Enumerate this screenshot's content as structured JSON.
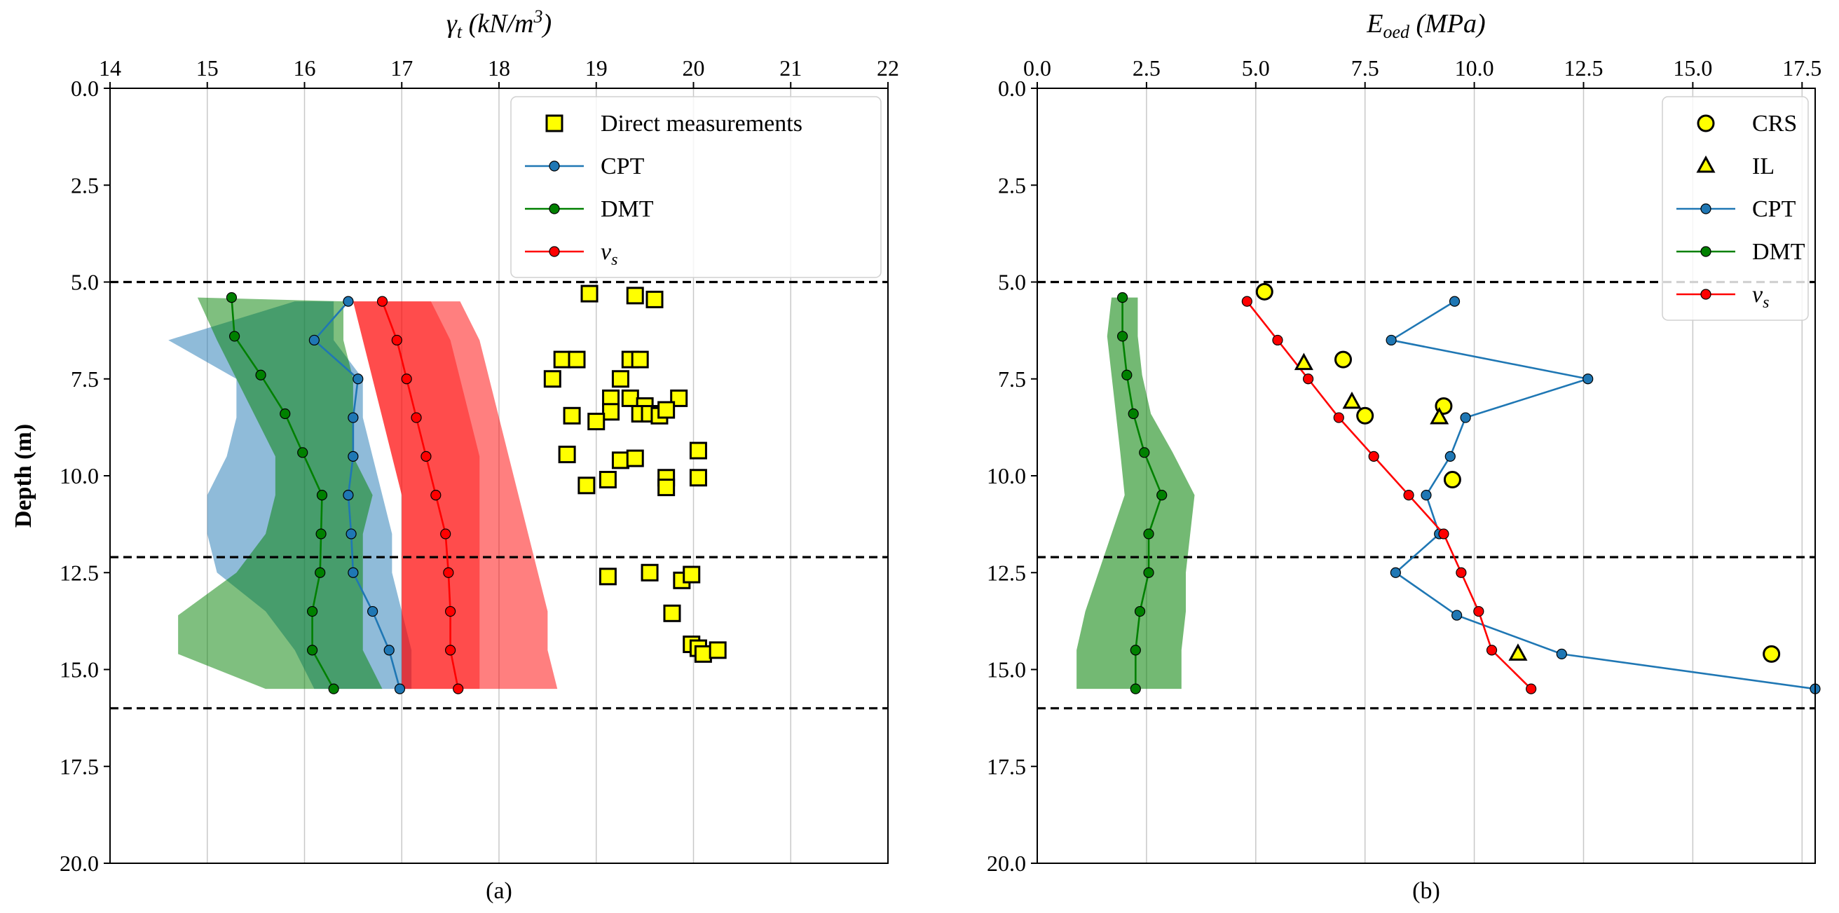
{
  "figure": {
    "background": "#ffffff"
  },
  "colors": {
    "cpt": "#1f77b4",
    "dmt": "#008000",
    "vs": "#ff0000",
    "direct": "#ffff00",
    "grid": "#c8c8c8",
    "boundary": "#000000"
  },
  "chart_data": [
    {
      "id": "a",
      "type": "line",
      "panel_label": "(a)",
      "title_main": "γ",
      "title_sub": "t",
      "title_units": "(kN/m",
      "title_units_sup": "3",
      "title_units_close": ")",
      "ylabel": "Depth (m)",
      "xlim": [
        14,
        22
      ],
      "ylim": [
        20,
        0
      ],
      "xticks": [
        14,
        15,
        16,
        17,
        18,
        19,
        20,
        21,
        22
      ],
      "xtick_labels": [
        "14",
        "15",
        "16",
        "17",
        "18",
        "19",
        "20",
        "21",
        "22"
      ],
      "yticks": [
        0,
        2.5,
        5,
        7.5,
        10,
        12.5,
        15,
        17.5,
        20
      ],
      "ytick_labels": [
        "0.0",
        "2.5",
        "5.0",
        "7.5",
        "10.0",
        "12.5",
        "15.0",
        "17.5",
        "20.0"
      ],
      "grid": "vertical",
      "boundaries": [
        5.0,
        12.1,
        16.0
      ],
      "legend_position": "top-right",
      "legend": [
        {
          "label": "Direct measurements",
          "kind": "square-marker"
        },
        {
          "label": "CPT",
          "kind": "line",
          "series": "cpt"
        },
        {
          "label": "DMT",
          "kind": "line",
          "series": "dmt"
        },
        {
          "label": "v",
          "sub": "s",
          "kind": "line",
          "series": "vs"
        }
      ],
      "bands": [
        {
          "series": "cpt",
          "name": "CPT range",
          "opacity": 0.5,
          "upper": [
            [
              16.3,
              5.5
            ],
            [
              16.3,
              6.5
            ],
            [
              16.6,
              7.5
            ],
            [
              16.6,
              8.5
            ],
            [
              16.7,
              9.5
            ],
            [
              16.8,
              10.5
            ],
            [
              16.9,
              11.5
            ],
            [
              16.9,
              12.5
            ],
            [
              17.0,
              13.5
            ],
            [
              17.1,
              14.5
            ],
            [
              17.1,
              15.5
            ]
          ],
          "lower": [
            [
              15.9,
              5.5
            ],
            [
              14.6,
              6.5
            ],
            [
              15.3,
              7.5
            ],
            [
              15.3,
              8.5
            ],
            [
              15.2,
              9.5
            ],
            [
              15.0,
              10.5
            ],
            [
              15.0,
              11.5
            ],
            [
              15.1,
              12.5
            ],
            [
              15.6,
              13.5
            ],
            [
              15.9,
              14.5
            ],
            [
              16.1,
              15.5
            ]
          ]
        },
        {
          "series": "dmt",
          "name": "DMT range",
          "opacity": 0.5,
          "upper": [
            [
              16.4,
              5.5
            ],
            [
              16.4,
              6.5
            ],
            [
              16.5,
              7.5
            ],
            [
              16.5,
              8.5
            ],
            [
              16.5,
              9.5
            ],
            [
              16.7,
              10.5
            ],
            [
              16.6,
              11.5
            ],
            [
              16.6,
              12.5
            ],
            [
              16.6,
              13.5
            ],
            [
              16.6,
              14.5
            ],
            [
              16.8,
              15.5
            ]
          ],
          "lower": [
            [
              14.9,
              5.4
            ],
            [
              15.1,
              6.5
            ],
            [
              15.3,
              7.5
            ],
            [
              15.5,
              8.5
            ],
            [
              15.7,
              9.5
            ],
            [
              15.7,
              10.5
            ],
            [
              15.6,
              11.5
            ],
            [
              15.3,
              12.5
            ],
            [
              14.7,
              13.6
            ],
            [
              14.7,
              14.6
            ],
            [
              15.6,
              15.5
            ]
          ]
        },
        {
          "series": "vs",
          "name": "vs range",
          "opacity": 0.5,
          "upper": [
            [
              17.6,
              5.5
            ],
            [
              17.8,
              6.5
            ],
            [
              17.9,
              7.5
            ],
            [
              18.0,
              8.5
            ],
            [
              18.1,
              9.5
            ],
            [
              18.2,
              10.5
            ],
            [
              18.3,
              11.5
            ],
            [
              18.4,
              12.5
            ],
            [
              18.5,
              13.5
            ],
            [
              18.5,
              14.5
            ],
            [
              18.6,
              15.5
            ]
          ],
          "lower": [
            [
              16.5,
              5.5
            ],
            [
              16.6,
              6.5
            ],
            [
              16.7,
              7.5
            ],
            [
              16.8,
              8.5
            ],
            [
              16.9,
              9.5
            ],
            [
              17.0,
              10.5
            ],
            [
              17.0,
              11.5
            ],
            [
              17.0,
              12.5
            ],
            [
              17.0,
              13.5
            ],
            [
              17.0,
              14.5
            ],
            [
              17.0,
              15.5
            ]
          ]
        },
        {
          "series": "vs",
          "name": "vs inner range",
          "opacity": 0.4,
          "upper": [
            [
              17.3,
              5.5
            ],
            [
              17.5,
              6.5
            ],
            [
              17.6,
              7.5
            ],
            [
              17.7,
              8.5
            ],
            [
              17.8,
              9.5
            ],
            [
              17.8,
              10.5
            ],
            [
              17.8,
              11.5
            ],
            [
              17.8,
              12.5
            ],
            [
              17.8,
              13.5
            ],
            [
              17.8,
              14.5
            ],
            [
              17.8,
              15.5
            ]
          ],
          "lower": [
            [
              16.5,
              5.5
            ],
            [
              16.6,
              6.5
            ],
            [
              16.7,
              7.5
            ],
            [
              16.8,
              8.5
            ],
            [
              16.9,
              9.5
            ],
            [
              17.0,
              10.5
            ],
            [
              17.0,
              11.5
            ],
            [
              17.0,
              12.5
            ],
            [
              17.0,
              13.5
            ],
            [
              17.0,
              14.5
            ],
            [
              17.0,
              15.5
            ]
          ]
        }
      ],
      "series": [
        {
          "key": "cpt",
          "name": "CPT",
          "x": [
            16.45,
            16.1,
            16.55,
            16.5,
            16.5,
            16.45,
            16.48,
            16.5,
            16.7,
            16.87,
            16.98
          ],
          "y": [
            5.5,
            6.5,
            7.5,
            8.5,
            9.5,
            10.5,
            11.5,
            12.5,
            13.5,
            14.5,
            15.5
          ]
        },
        {
          "key": "dmt",
          "name": "DMT",
          "x": [
            15.25,
            15.28,
            15.55,
            15.8,
            15.98,
            16.18,
            16.17,
            16.16,
            16.08,
            16.08,
            16.3
          ],
          "y": [
            5.4,
            6.4,
            7.4,
            8.4,
            9.4,
            10.5,
            11.5,
            12.5,
            13.5,
            14.5,
            15.5
          ]
        },
        {
          "key": "vs",
          "name": "vs",
          "x": [
            16.8,
            16.95,
            17.05,
            17.15,
            17.25,
            17.35,
            17.45,
            17.48,
            17.5,
            17.5,
            17.58
          ],
          "y": [
            5.5,
            6.5,
            7.5,
            8.5,
            9.5,
            10.5,
            11.5,
            12.5,
            13.5,
            14.5,
            15.5
          ]
        }
      ],
      "scatter": [
        {
          "name": "Direct measurements",
          "marker": "square",
          "points": [
            [
              18.93,
              5.3
            ],
            [
              19.4,
              5.35
            ],
            [
              19.6,
              5.45
            ],
            [
              18.65,
              7.0
            ],
            [
              18.8,
              7.0
            ],
            [
              19.35,
              7.0
            ],
            [
              19.45,
              7.0
            ],
            [
              18.55,
              7.5
            ],
            [
              19.25,
              7.5
            ],
            [
              19.15,
              8.0
            ],
            [
              19.35,
              8.0
            ],
            [
              19.5,
              8.2
            ],
            [
              19.85,
              8.0
            ],
            [
              18.75,
              8.45
            ],
            [
              19.15,
              8.35
            ],
            [
              19.45,
              8.4
            ],
            [
              19.55,
              8.4
            ],
            [
              19.65,
              8.45
            ],
            [
              19.72,
              8.3
            ],
            [
              19.0,
              8.6
            ],
            [
              18.7,
              9.45
            ],
            [
              19.25,
              9.6
            ],
            [
              19.4,
              9.55
            ],
            [
              20.05,
              9.35
            ],
            [
              18.9,
              10.25
            ],
            [
              19.12,
              10.1
            ],
            [
              19.72,
              10.05
            ],
            [
              19.72,
              10.3
            ],
            [
              20.05,
              10.05
            ],
            [
              19.12,
              12.6
            ],
            [
              19.55,
              12.5
            ],
            [
              19.88,
              12.7
            ],
            [
              19.98,
              12.55
            ],
            [
              19.78,
              13.55
            ],
            [
              19.98,
              14.35
            ],
            [
              20.05,
              14.45
            ],
            [
              20.1,
              14.6
            ],
            [
              20.25,
              14.5
            ]
          ]
        }
      ]
    },
    {
      "id": "b",
      "type": "line",
      "panel_label": "(b)",
      "title_main": "E",
      "title_sub": "oed",
      "title_units": "(MPa)",
      "title_units_sup": "",
      "title_units_close": "",
      "ylabel": "",
      "xlim": [
        0,
        17.8
      ],
      "ylim": [
        20,
        0
      ],
      "xticks": [
        0,
        2.5,
        5,
        7.5,
        10,
        12.5,
        15,
        17.5
      ],
      "xtick_labels": [
        "0.0",
        "2.5",
        "5.0",
        "7.5",
        "10.0",
        "12.5",
        "15.0",
        "17.5"
      ],
      "yticks": [
        0,
        2.5,
        5,
        7.5,
        10,
        12.5,
        15,
        17.5,
        20
      ],
      "ytick_labels": [
        "0.0",
        "2.5",
        "5.0",
        "7.5",
        "10.0",
        "12.5",
        "15.0",
        "17.5",
        "20.0"
      ],
      "grid": "vertical",
      "boundaries": [
        5.0,
        12.1,
        16.0
      ],
      "legend_position": "top-right",
      "legend": [
        {
          "label": "CRS",
          "kind": "circle-marker"
        },
        {
          "label": "IL",
          "kind": "triangle-marker"
        },
        {
          "label": "CPT",
          "kind": "line",
          "series": "cpt"
        },
        {
          "label": "DMT",
          "kind": "line",
          "series": "dmt"
        },
        {
          "label": "v",
          "sub": "s",
          "kind": "line",
          "series": "vs"
        }
      ],
      "bands": [
        {
          "series": "dmt",
          "name": "DMT range",
          "opacity": 0.55,
          "upper": [
            [
              2.3,
              5.4
            ],
            [
              2.3,
              6.4
            ],
            [
              2.4,
              7.4
            ],
            [
              2.6,
              8.4
            ],
            [
              3.1,
              9.4
            ],
            [
              3.6,
              10.5
            ],
            [
              3.5,
              11.5
            ],
            [
              3.4,
              12.5
            ],
            [
              3.4,
              13.5
            ],
            [
              3.3,
              14.5
            ],
            [
              3.3,
              15.5
            ]
          ],
          "lower": [
            [
              1.7,
              5.4
            ],
            [
              1.6,
              6.4
            ],
            [
              1.7,
              7.4
            ],
            [
              1.8,
              8.4
            ],
            [
              1.9,
              9.4
            ],
            [
              2.0,
              10.5
            ],
            [
              1.7,
              11.5
            ],
            [
              1.4,
              12.5
            ],
            [
              1.1,
              13.5
            ],
            [
              0.9,
              14.5
            ],
            [
              0.9,
              15.5
            ]
          ]
        }
      ],
      "series": [
        {
          "key": "cpt",
          "name": "CPT",
          "x": [
            9.55,
            8.1,
            12.6,
            9.8,
            9.45,
            8.9,
            9.2,
            8.2,
            9.6,
            12.0,
            17.8
          ],
          "y": [
            5.5,
            6.5,
            7.5,
            8.5,
            9.5,
            10.5,
            11.5,
            12.5,
            13.6,
            14.6,
            15.5
          ]
        },
        {
          "key": "dmt",
          "name": "DMT",
          "x": [
            1.95,
            1.95,
            2.05,
            2.2,
            2.45,
            2.85,
            2.55,
            2.55,
            2.35,
            2.25,
            2.25
          ],
          "y": [
            5.4,
            6.4,
            7.4,
            8.4,
            9.4,
            10.5,
            11.5,
            12.5,
            13.5,
            14.5,
            15.5
          ]
        },
        {
          "key": "vs",
          "name": "vs",
          "x": [
            4.8,
            5.5,
            6.2,
            6.9,
            7.7,
            8.5,
            9.3,
            9.7,
            10.1,
            10.4,
            11.3
          ],
          "y": [
            5.5,
            6.5,
            7.5,
            8.5,
            9.5,
            10.5,
            11.5,
            12.5,
            13.5,
            14.5,
            15.5
          ]
        }
      ],
      "scatter": [
        {
          "name": "CRS",
          "marker": "circle",
          "points": [
            [
              5.2,
              5.25
            ],
            [
              7.0,
              7.0
            ],
            [
              7.5,
              8.45
            ],
            [
              9.3,
              8.2
            ],
            [
              9.5,
              10.1
            ],
            [
              16.8,
              14.6
            ]
          ]
        },
        {
          "name": "IL",
          "marker": "triangle",
          "points": [
            [
              6.1,
              7.1
            ],
            [
              7.2,
              8.1
            ],
            [
              9.2,
              8.5
            ],
            [
              11.0,
              14.6
            ]
          ]
        }
      ]
    }
  ]
}
